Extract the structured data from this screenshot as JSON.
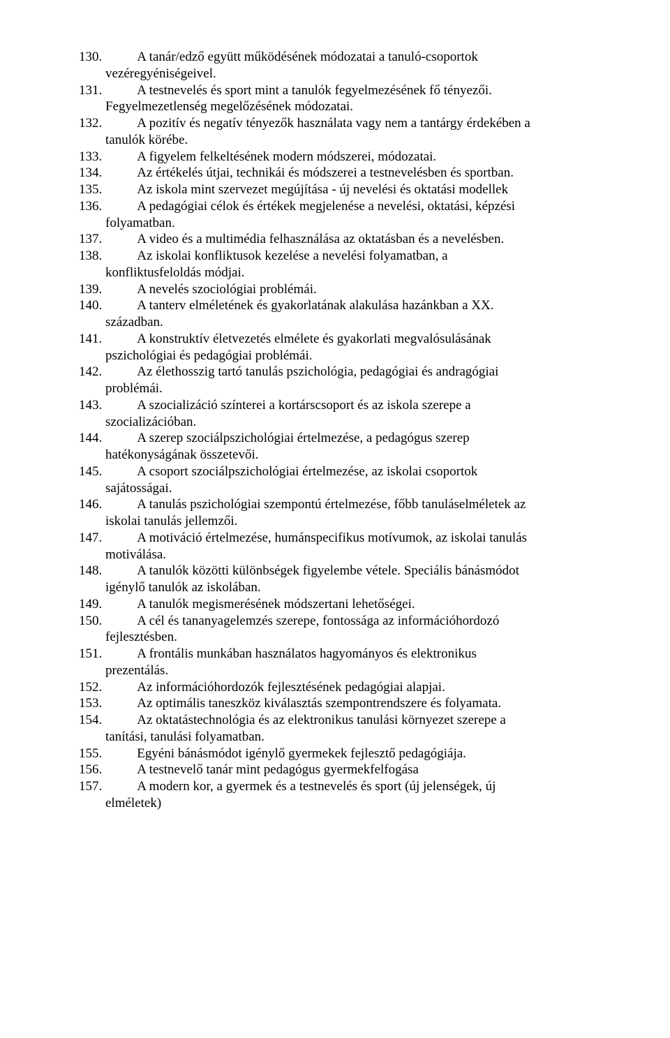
{
  "items": [
    {
      "num": "130.",
      "lines": [
        "A tanár/edző együtt működésének módozatai a tanuló-csoportok"
      ],
      "cont": [
        "vezéregyéniségeivel."
      ]
    },
    {
      "num": "131.",
      "lines": [
        "A testnevelés és sport mint a tanulók fegyelmezésének fő tényezői."
      ],
      "cont": [
        "Fegyelmezetlenség megelőzésének módozatai."
      ]
    },
    {
      "num": "132.",
      "lines": [
        "A pozitív és negatív tényezők használata vagy nem a tantárgy érdekében a"
      ],
      "cont": [
        "tanulók körébe."
      ]
    },
    {
      "num": "133.",
      "lines": [
        "A figyelem felkeltésének modern módszerei, módozatai."
      ],
      "cont": []
    },
    {
      "num": "134.",
      "lines": [
        "Az értékelés útjai, technikái és módszerei a testnevelésben és sportban."
      ],
      "cont": []
    },
    {
      "num": "135.",
      "lines": [
        "Az iskola mint szervezet megújítása - új nevelési és oktatási modellek"
      ],
      "cont": []
    },
    {
      "num": "136.",
      "lines": [
        "A pedagógiai célok és értékek megjelenése a nevelési, oktatási, képzési"
      ],
      "cont": [
        "folyamatban."
      ]
    },
    {
      "num": "137.",
      "lines": [
        "A video és a multimédia felhasználása az oktatásban és a nevelésben."
      ],
      "cont": []
    },
    {
      "num": "138.",
      "lines": [
        "Az iskolai konfliktusok kezelése a nevelési folyamatban, a"
      ],
      "cont": [
        "konfliktusfeloldás módjai."
      ]
    },
    {
      "num": "139.",
      "lines": [
        "A nevelés szociológiai problémái."
      ],
      "cont": []
    },
    {
      "num": "140.",
      "lines": [
        "A tanterv elméletének és gyakorlatának alakulása hazánkban a XX."
      ],
      "cont": [
        "században."
      ]
    },
    {
      "num": "141.",
      "lines": [
        "A konstruktív életvezetés elmélete és gyakorlati megvalósulásának"
      ],
      "cont": [
        "pszichológiai és pedagógiai problémái."
      ]
    },
    {
      "num": "142.",
      "lines": [
        "Az élethosszig tartó tanulás pszichológia, pedagógiai és andragógiai"
      ],
      "cont": [
        "problémái."
      ]
    },
    {
      "num": "143.",
      "lines": [
        "A szocializáció színterei a kortárscsoport és az iskola szerepe a"
      ],
      "cont": [
        "szocializációban."
      ]
    },
    {
      "num": "144.",
      "lines": [
        "A szerep szociálpszichológiai értelmezése, a pedagógus szerep"
      ],
      "cont": [
        "hatékonyságának összetevői."
      ]
    },
    {
      "num": "145.",
      "lines": [
        "A csoport szociálpszichológiai értelmezése, az iskolai csoportok"
      ],
      "cont": [
        "sajátosságai."
      ]
    },
    {
      "num": "146.",
      "lines": [
        "A tanulás pszichológiai szempontú értelmezése, főbb tanuláselméletek az"
      ],
      "cont": [
        "iskolai tanulás jellemzői."
      ]
    },
    {
      "num": "147.",
      "lines": [
        "A motiváció értelmezése, humánspecifikus motívumok, az iskolai tanulás"
      ],
      "cont": [
        "motiválása."
      ]
    },
    {
      "num": "148.",
      "lines": [
        "A tanulók közötti különbségek figyelembe vétele. Speciális bánásmódot"
      ],
      "cont": [
        "igénylő tanulók az iskolában."
      ]
    },
    {
      "num": "149.",
      "lines": [
        "A tanulók megismerésének módszertani lehetőségei."
      ],
      "cont": []
    },
    {
      "num": "150.",
      "lines": [
        "A cél és tananyagelemzés szerepe, fontossága az információhordozó"
      ],
      "cont": [
        "fejlesztésben."
      ]
    },
    {
      "num": "151.",
      "lines": [
        "A frontális munkában használatos hagyományos és elektronikus"
      ],
      "cont": [
        "prezentálás."
      ]
    },
    {
      "num": "152.",
      "lines": [
        "Az információhordozók fejlesztésének pedagógiai alapjai."
      ],
      "cont": []
    },
    {
      "num": "153.",
      "lines": [
        "Az optimális taneszköz kiválasztás szempontrendszere és folyamata."
      ],
      "cont": []
    },
    {
      "num": "154.",
      "lines": [
        "Az oktatástechnológia és az elektronikus tanulási környezet szerepe a"
      ],
      "cont": [
        "tanítási, tanulási folyamatban."
      ]
    },
    {
      "num": "155.",
      "lines": [
        "Egyéni bánásmódot igénylő gyermekek fejlesztő pedagógiája."
      ],
      "cont": []
    },
    {
      "num": "156.",
      "lines": [
        "A testnevelő tanár mint pedagógus gyermekfelfogása"
      ],
      "cont": []
    },
    {
      "num": "157.",
      "lines": [
        "A modern kor, a gyermek és a testnevelés és sport (új jelenségek, új"
      ],
      "cont": [
        "elméletek)"
      ]
    }
  ]
}
